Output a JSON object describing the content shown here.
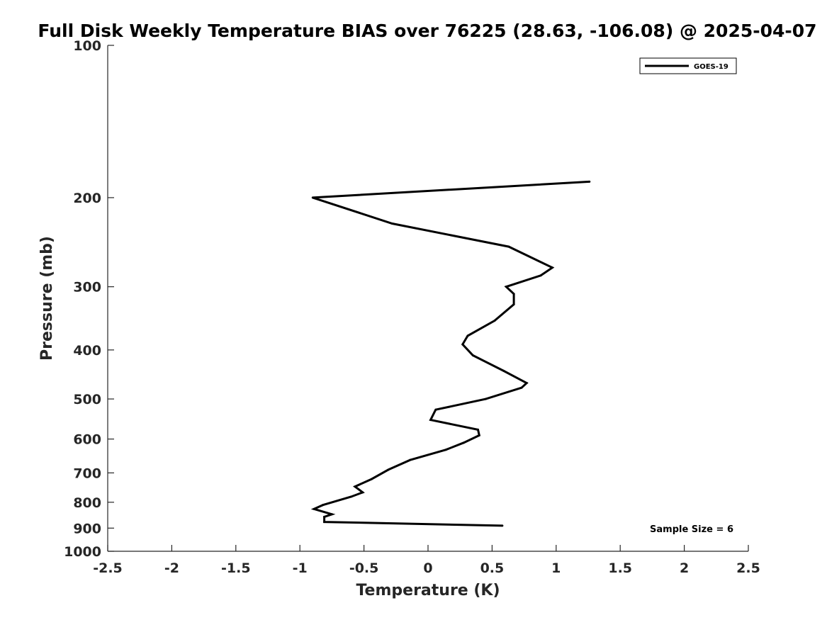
{
  "chart_data": {
    "type": "line",
    "title": "Full Disk Weekly Temperature BIAS over 76225 (28.63, -106.08) @ 2025-04-07",
    "xlabel": "Temperature (K)",
    "ylabel": "Pressure (mb)",
    "xlim": [
      -2.5,
      2.5
    ],
    "ylim": [
      100,
      1000
    ],
    "y_scale": "log",
    "y_reversed": true,
    "grid": false,
    "legend_position": "top-right",
    "x_ticks": [
      "-2.5",
      "-2",
      "-1.5",
      "-1",
      "-0.5",
      "0",
      "0.5",
      "1",
      "1.5",
      "2",
      "2.5"
    ],
    "y_ticks": [
      "100",
      "200",
      "300",
      "400",
      "500",
      "600",
      "700",
      "800",
      "900",
      "1000"
    ],
    "series": [
      {
        "name": "GOES-19",
        "color": "#000000",
        "points": [
          {
            "x": 1.26,
            "y": 186
          },
          {
            "x": -0.9,
            "y": 200
          },
          {
            "x": -0.28,
            "y": 225
          },
          {
            "x": 0.63,
            "y": 250
          },
          {
            "x": 0.97,
            "y": 275
          },
          {
            "x": 0.88,
            "y": 285
          },
          {
            "x": 0.61,
            "y": 300
          },
          {
            "x": 0.67,
            "y": 310
          },
          {
            "x": 0.67,
            "y": 325
          },
          {
            "x": 0.52,
            "y": 350
          },
          {
            "x": 0.31,
            "y": 375
          },
          {
            "x": 0.27,
            "y": 390
          },
          {
            "x": 0.35,
            "y": 410
          },
          {
            "x": 0.59,
            "y": 440
          },
          {
            "x": 0.77,
            "y": 465
          },
          {
            "x": 0.73,
            "y": 475
          },
          {
            "x": 0.45,
            "y": 500
          },
          {
            "x": 0.06,
            "y": 525
          },
          {
            "x": 0.02,
            "y": 550
          },
          {
            "x": 0.39,
            "y": 575
          },
          {
            "x": 0.4,
            "y": 590
          },
          {
            "x": 0.28,
            "y": 610
          },
          {
            "x": 0.14,
            "y": 630
          },
          {
            "x": -0.14,
            "y": 660
          },
          {
            "x": -0.31,
            "y": 690
          },
          {
            "x": -0.44,
            "y": 720
          },
          {
            "x": -0.57,
            "y": 745
          },
          {
            "x": -0.51,
            "y": 765
          },
          {
            "x": -0.6,
            "y": 780
          },
          {
            "x": -0.82,
            "y": 810
          },
          {
            "x": -0.89,
            "y": 825
          },
          {
            "x": -0.75,
            "y": 845
          },
          {
            "x": -0.81,
            "y": 855
          },
          {
            "x": -0.81,
            "y": 875
          },
          {
            "x": 0.58,
            "y": 890
          }
        ]
      }
    ],
    "annotation": "Sample Size = 6"
  }
}
